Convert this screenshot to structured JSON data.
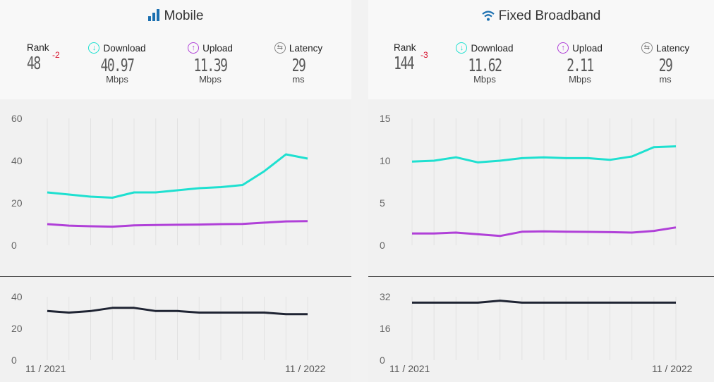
{
  "mobile": {
    "title": "Mobile",
    "rank_label": "Rank",
    "rank_value": "48",
    "rank_change": "-2",
    "download_label": "Download",
    "download_value": "40.97",
    "download_unit": "Mbps",
    "upload_label": "Upload",
    "upload_value": "11.39",
    "upload_unit": "Mbps",
    "latency_label": "Latency",
    "latency_value": "29",
    "latency_unit": "ms",
    "x_start": "11 / 2021",
    "x_end": "11 / 2022"
  },
  "fixed": {
    "title": "Fixed Broadband",
    "rank_label": "Rank",
    "rank_value": "144",
    "rank_change": "-3",
    "download_label": "Download",
    "download_value": "11.62",
    "download_unit": "Mbps",
    "upload_label": "Upload",
    "upload_value": "2.11",
    "upload_unit": "Mbps",
    "latency_label": "Latency",
    "latency_value": "29",
    "latency_unit": "ms",
    "x_start": "11 / 2021",
    "x_end": "11 / 2022"
  },
  "colors": {
    "download": "#1ee0d0",
    "upload": "#b040d8",
    "latency": "#1f2433",
    "rank_change": "#d7132e",
    "icon": "#1a6fb0"
  },
  "chart_data": [
    {
      "type": "line",
      "panel": "Mobile",
      "x": [
        "11/2021",
        "12/2021",
        "01/2022",
        "02/2022",
        "03/2022",
        "04/2022",
        "05/2022",
        "06/2022",
        "07/2022",
        "08/2022",
        "09/2022",
        "10/2022",
        "11/2022"
      ],
      "ylim": [
        0,
        60
      ],
      "yticks": [
        "60",
        "40",
        "20",
        "0"
      ],
      "series": [
        {
          "name": "Download",
          "values": [
            25,
            24,
            23,
            22.5,
            25,
            25,
            26,
            27,
            27.5,
            28.5,
            35,
            43,
            41
          ]
        },
        {
          "name": "Upload",
          "values": [
            10,
            9.3,
            9,
            8.8,
            9.4,
            9.6,
            9.7,
            9.8,
            10,
            10.1,
            10.7,
            11.3,
            11.39
          ]
        }
      ]
    },
    {
      "type": "line",
      "panel": "Mobile latency",
      "x": [
        "11/2021",
        "12/2021",
        "01/2022",
        "02/2022",
        "03/2022",
        "04/2022",
        "05/2022",
        "06/2022",
        "07/2022",
        "08/2022",
        "09/2022",
        "10/2022",
        "11/2022"
      ],
      "ylim": [
        0,
        40
      ],
      "yticks": [
        "40",
        "20",
        "0"
      ],
      "series": [
        {
          "name": "Latency",
          "values": [
            31,
            30,
            31,
            33,
            33,
            31,
            31,
            30,
            30,
            30,
            30,
            29,
            29
          ]
        }
      ]
    },
    {
      "type": "line",
      "panel": "Fixed Broadband",
      "x": [
        "11/2021",
        "12/2021",
        "01/2022",
        "02/2022",
        "03/2022",
        "04/2022",
        "05/2022",
        "06/2022",
        "07/2022",
        "08/2022",
        "09/2022",
        "10/2022",
        "11/2022"
      ],
      "ylim": [
        0,
        15
      ],
      "yticks": [
        "15",
        "10",
        "5",
        "0"
      ],
      "series": [
        {
          "name": "Download",
          "values": [
            9.9,
            10,
            10.4,
            9.8,
            10,
            10.3,
            10.4,
            10.3,
            10.3,
            10.1,
            10.5,
            11.6,
            11.7
          ]
        },
        {
          "name": "Upload",
          "values": [
            1.4,
            1.4,
            1.5,
            1.3,
            1.1,
            1.6,
            1.65,
            1.6,
            1.58,
            1.55,
            1.5,
            1.7,
            2.11
          ]
        }
      ]
    },
    {
      "type": "line",
      "panel": "Fixed Broadband latency",
      "x": [
        "11/2021",
        "12/2021",
        "01/2022",
        "02/2022",
        "03/2022",
        "04/2022",
        "05/2022",
        "06/2022",
        "07/2022",
        "08/2022",
        "09/2022",
        "10/2022",
        "11/2022"
      ],
      "ylim": [
        0,
        32
      ],
      "yticks": [
        "32",
        "16",
        "0"
      ],
      "series": [
        {
          "name": "Latency",
          "values": [
            29,
            29,
            29,
            29,
            30,
            29,
            29,
            29,
            29,
            29,
            29,
            29,
            29
          ]
        }
      ]
    }
  ]
}
